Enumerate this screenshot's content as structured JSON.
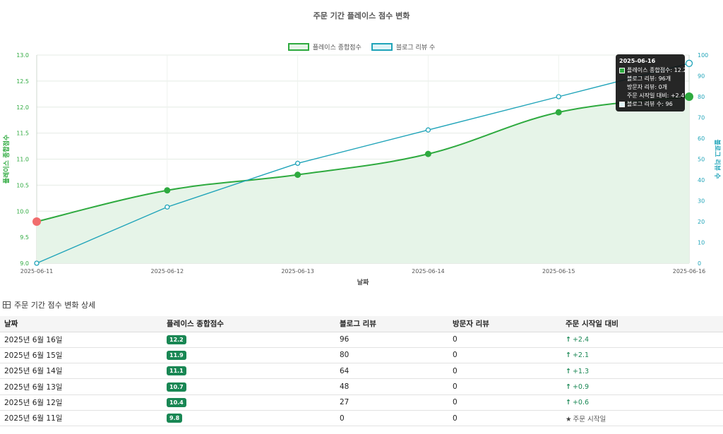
{
  "chart_data": {
    "type": "line",
    "title": "주문 기간 플레이스 점수 변화",
    "xlabel": "날짜",
    "ylabel_left": "플레이스 종합점수",
    "ylabel_right": "블로그 리뷰 수",
    "x": [
      "2025-06-11",
      "2025-06-12",
      "2025-06-13",
      "2025-06-14",
      "2025-06-15",
      "2025-06-16"
    ],
    "ylim_left": [
      9.0,
      13.0
    ],
    "yticks_left": [
      "9.0",
      "9.5",
      "10.0",
      "10.5",
      "11.0",
      "11.5",
      "12.0",
      "12.5",
      "13.0"
    ],
    "ylim_right": [
      0,
      100
    ],
    "yticks_right": [
      "0",
      "10",
      "20",
      "30",
      "40",
      "50",
      "60",
      "70",
      "80",
      "90",
      "100"
    ],
    "grid": true,
    "legend_position": "top-center",
    "series": [
      {
        "name": "플레이스 종합점수",
        "axis": "left",
        "values": [
          9.8,
          10.4,
          10.7,
          11.1,
          11.9,
          12.2
        ],
        "color": "#2eaa3f",
        "fill": "#e6f4e8",
        "first_point_color": "#f16d6d"
      },
      {
        "name": "블로그 리뷰 수",
        "axis": "right",
        "values": [
          0,
          27,
          48,
          64,
          80,
          96
        ],
        "color": "#20a4b9"
      }
    ]
  },
  "tooltip": {
    "title": "2025-06-16",
    "score_line": "플레이스 종합점수: 12.2",
    "blog_line": "블로그 리뷰: 96개",
    "visit_line": "방문자 리뷰: 0개",
    "delta_line": "주문 시작일 대비: +2.4",
    "blog_count_line": "블로그 리뷰 수: 96"
  },
  "table": {
    "heading": "주문 기간 점수 변화 상세",
    "headers": [
      "날짜",
      "플레이스 종합점수",
      "블로그 리뷰",
      "방문자 리뷰",
      "주문 시작일 대비"
    ],
    "rows": [
      {
        "date": "2025년 6월 16일",
        "score": "12.2",
        "blog": "96",
        "visit": "0",
        "delta": "+2.4"
      },
      {
        "date": "2025년 6월 15일",
        "score": "11.9",
        "blog": "80",
        "visit": "0",
        "delta": "+2.1"
      },
      {
        "date": "2025년 6월 14일",
        "score": "11.1",
        "blog": "64",
        "visit": "0",
        "delta": "+1.3"
      },
      {
        "date": "2025년 6월 13일",
        "score": "10.7",
        "blog": "48",
        "visit": "0",
        "delta": "+0.9"
      },
      {
        "date": "2025년 6월 12일",
        "score": "10.4",
        "blog": "27",
        "visit": "0",
        "delta": "+0.6"
      },
      {
        "date": "2025년 6월 11일",
        "score": "9.8",
        "blog": "0",
        "visit": "0",
        "delta": "주문 시작일"
      }
    ]
  },
  "colors": {
    "badge": "#198754",
    "score_line": "#2eaa3f",
    "blog_line": "#20a4b9",
    "start_point": "#f16d6d"
  }
}
